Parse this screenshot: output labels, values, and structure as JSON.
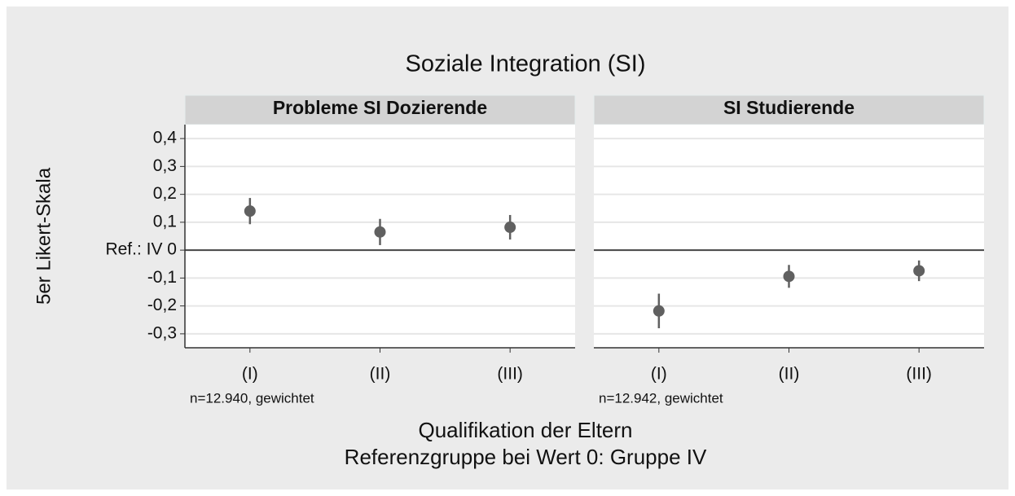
{
  "chart_data": {
    "type": "errorbar",
    "title": "Soziale Integration (SI)",
    "ylabel": "5er Likert-Skala",
    "xlabel": [
      "Qualifikation der Eltern",
      "Referenzgruppe bei Wert 0: Gruppe IV"
    ],
    "ylim": [
      -0.35,
      0.45
    ],
    "yticks": [
      {
        "value": 0.4,
        "label": "0,4"
      },
      {
        "value": 0.3,
        "label": "0,3"
      },
      {
        "value": 0.2,
        "label": "0,2"
      },
      {
        "value": 0.1,
        "label": "0,1"
      },
      {
        "value": 0,
        "label": "Ref.: IV 0"
      },
      {
        "value": -0.1,
        "label": "-0,1"
      },
      {
        "value": -0.2,
        "label": "-0,2"
      },
      {
        "value": -0.3,
        "label": "-0,3"
      }
    ],
    "grid": true,
    "color": "#606060",
    "panels": [
      {
        "title": "Probleme SI Dozierende",
        "categories": [
          "(I)",
          "(II)",
          "(III)"
        ],
        "values": [
          0.14,
          0.065,
          0.082
        ],
        "errors": [
          0.047,
          0.047,
          0.044
        ],
        "note": "n=12.940, gewichtet"
      },
      {
        "title": "SI Studierende",
        "categories": [
          "(I)",
          "(II)",
          "(III)"
        ],
        "values": [
          -0.218,
          -0.094,
          -0.074
        ],
        "errors": [
          0.062,
          0.041,
          0.037
        ],
        "note": "n=12.942, gewichtet"
      }
    ]
  }
}
